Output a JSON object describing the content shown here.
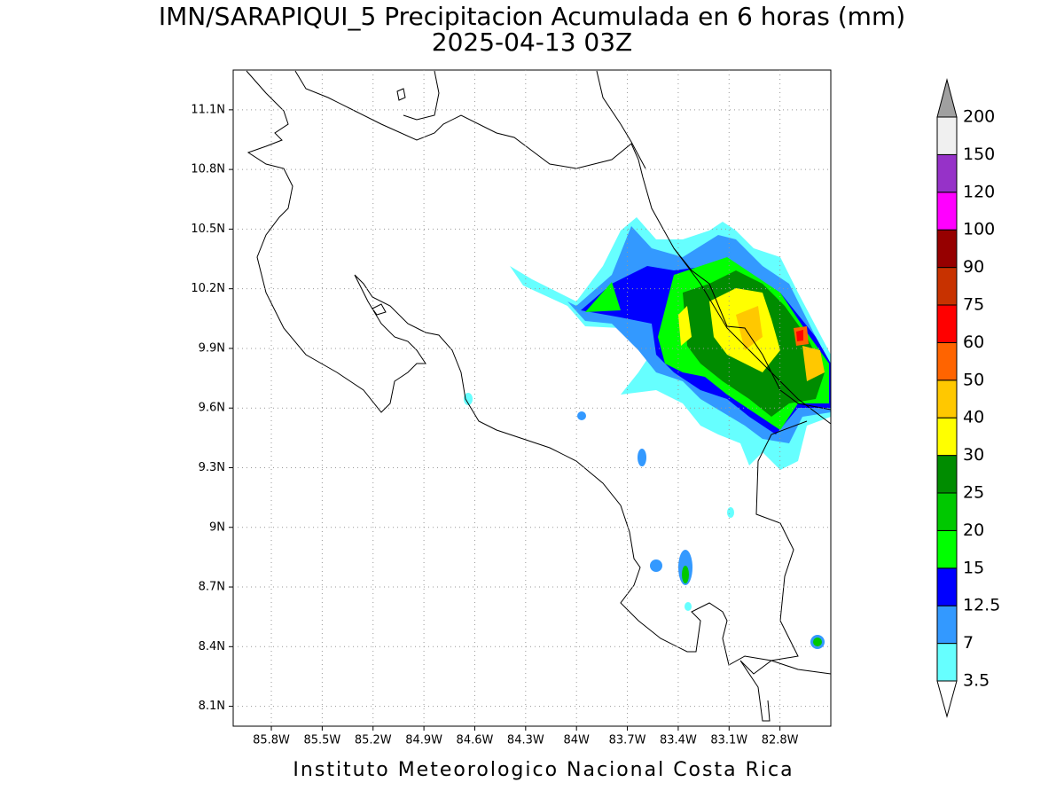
{
  "title": "IMN/SARAPIQUI_5 Precipitacion Acumulada en 6 horas (mm)",
  "subtitle": "2025-04-13 03Z",
  "footer": "Instituto Meteorologico Nacional Costa Rica",
  "map": {
    "xlim": [
      -86.025,
      -82.5
    ],
    "ylim": [
      8.0,
      11.3
    ],
    "grid": true,
    "xticks": [
      {
        "value": -85.8,
        "label": "85.8W"
      },
      {
        "value": -85.5,
        "label": "85.5W"
      },
      {
        "value": -85.2,
        "label": "85.2W"
      },
      {
        "value": -84.9,
        "label": "84.9W"
      },
      {
        "value": -84.6,
        "label": "84.6W"
      },
      {
        "value": -84.3,
        "label": "84.3W"
      },
      {
        "value": -84.0,
        "label": "84W"
      },
      {
        "value": -83.7,
        "label": "83.7W"
      },
      {
        "value": -83.4,
        "label": "83.4W"
      },
      {
        "value": -83.1,
        "label": "83.1W"
      },
      {
        "value": -82.8,
        "label": "82.8W"
      }
    ],
    "yticks": [
      {
        "value": 11.1,
        "label": "11.1N"
      },
      {
        "value": 10.8,
        "label": "10.8N"
      },
      {
        "value": 10.5,
        "label": "10.5N"
      },
      {
        "value": 10.2,
        "label": "10.2N"
      },
      {
        "value": 9.9,
        "label": "9.9N"
      },
      {
        "value": 9.6,
        "label": "9.6N"
      },
      {
        "value": 9.3,
        "label": "9.3N"
      },
      {
        "value": 9.0,
        "label": "9N"
      },
      {
        "value": 8.7,
        "label": "8.7N"
      },
      {
        "value": 8.4,
        "label": "8.4N"
      },
      {
        "value": 8.1,
        "label": "8.1N"
      }
    ]
  },
  "colorbar": {
    "levels": [
      3.5,
      7,
      12.5,
      15,
      20,
      25,
      30,
      40,
      50,
      60,
      75,
      90,
      100,
      120,
      150,
      200
    ],
    "colors": [
      "#66ffff",
      "#3399ff",
      "#0000ff",
      "#00ff00",
      "#00c800",
      "#008c00",
      "#ffff00",
      "#ffc800",
      "#ff6400",
      "#ff0000",
      "#c83200",
      "#960000",
      "#ff00ff",
      "#9632c8",
      "#f0f0f0"
    ],
    "over_color": "#a0a0a0",
    "under_color": "#ffffff"
  }
}
